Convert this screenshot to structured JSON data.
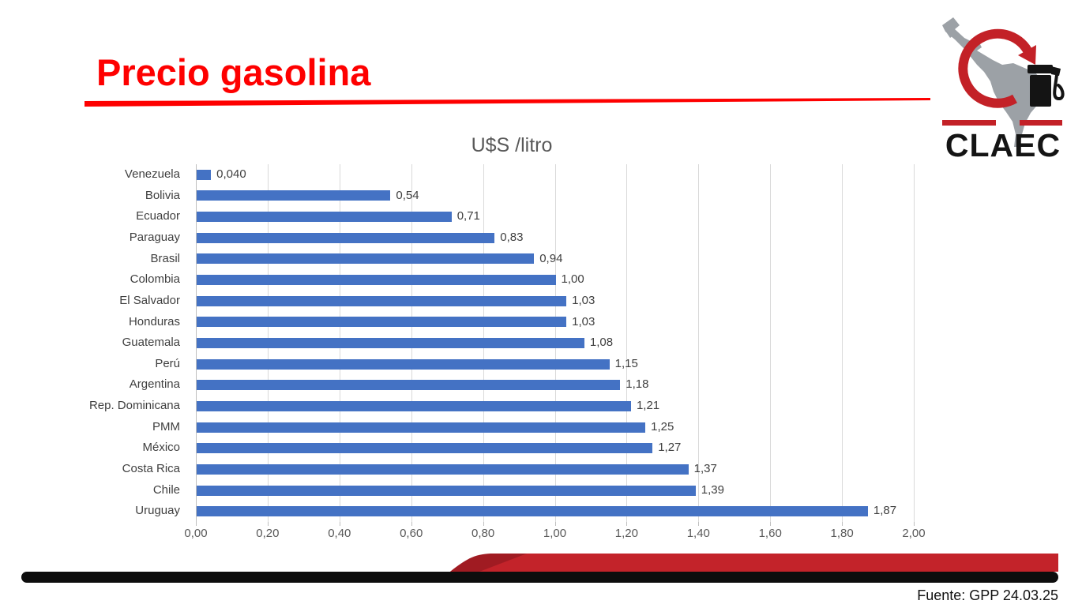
{
  "slide": {
    "title": "Precio gasolina",
    "source_note": "Fuente: GPP 24.03.25"
  },
  "logo": {
    "text": "CLAEC",
    "red": "#c32127",
    "gray": "#9ca1a6",
    "black": "#141414"
  },
  "decor": {
    "title_rule_color": "#fe0000",
    "black_bar_color": "#0d0d0d",
    "swoosh_red": "#c3232a",
    "swoosh_dark_red": "#a01b22"
  },
  "chart_data": {
    "type": "bar",
    "orientation": "horizontal",
    "title": "U$S /litro",
    "categories": [
      "Venezuela",
      "Bolivia",
      "Ecuador",
      "Paraguay",
      "Brasil",
      "Colombia",
      "El Salvador",
      "Honduras",
      "Guatemala",
      "Perú",
      "Argentina",
      "Rep. Dominicana",
      "PMM",
      "México",
      "Costa Rica",
      "Chile",
      "Uruguay"
    ],
    "values": [
      0.04,
      0.54,
      0.71,
      0.83,
      0.94,
      1.0,
      1.03,
      1.03,
      1.08,
      1.15,
      1.18,
      1.21,
      1.25,
      1.27,
      1.37,
      1.39,
      1.87
    ],
    "value_labels": [
      "0,040",
      "0,54",
      "0,71",
      "0,83",
      "0,94",
      "1,00",
      "1,03",
      "1,03",
      "1,08",
      "1,15",
      "1,18",
      "1,21",
      "1,25",
      "1,27",
      "1,37",
      "1,39",
      "1,87"
    ],
    "xlim": [
      0,
      2.0
    ],
    "x_tick_values": [
      0,
      0.2,
      0.4,
      0.6,
      0.8,
      1.0,
      1.2,
      1.4,
      1.6,
      1.8,
      2.0
    ],
    "x_tick_labels": [
      "0,00",
      "0,20",
      "0,40",
      "0,60",
      "0,80",
      "1,00",
      "1,20",
      "1,40",
      "1,60",
      "1,80",
      "2,00"
    ],
    "grid": true,
    "legend": false,
    "bar_color": "#4472c4",
    "grid_color": "#d9d9d9",
    "axis_color": "#bfbfbf",
    "category_label_color": "#3f3f3f",
    "value_label_color": "#404040",
    "tick_label_color": "#595959"
  }
}
